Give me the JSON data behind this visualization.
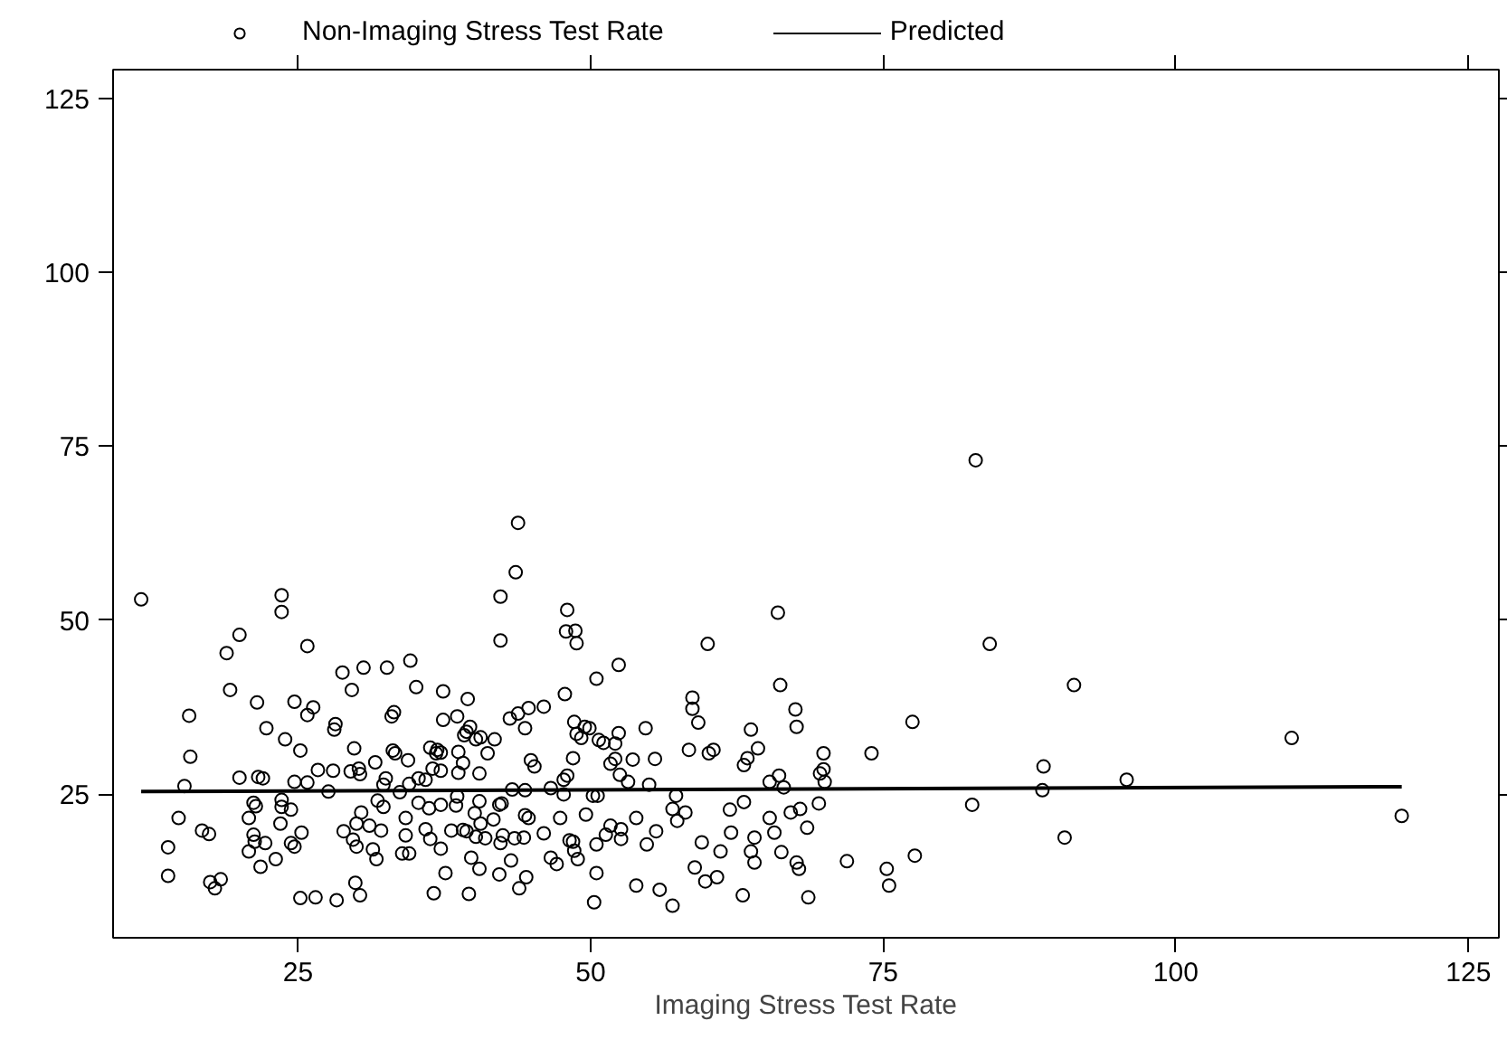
{
  "chart_data": {
    "type": "scatter",
    "xlabel": "Imaging Stress Test Rate",
    "xlim": [
      9.2,
      127.6
    ],
    "xticks": [
      25,
      50,
      75,
      100,
      125
    ],
    "ylim": [
      4.4,
      129.1
    ],
    "yticks": [
      25,
      50,
      75,
      100,
      125
    ],
    "grid": false,
    "legend": "top",
    "marker": "circle",
    "tick_labels": "both-left-bottom",
    "series": [
      {
        "name": "Non-Imaging Stress Test Rate",
        "color": "#000000",
        "x": [
          11.6,
          23.6,
          23.6,
          20.0,
          18.9,
          25.8,
          43.8,
          43.6,
          42.3,
          42.3,
          19.2,
          28.8,
          30.6,
          32.6,
          34.6,
          29.6,
          35.1,
          37.4,
          39.5,
          21.5,
          24.7,
          26.3,
          25.8,
          15.7,
          22.3,
          28.2,
          28.1,
          33.0,
          33.2,
          23.9,
          25.2,
          29.8,
          15.8,
          33.1,
          33.3,
          34.4,
          31.6,
          37.4,
          38.6,
          39.7,
          39.4,
          39.2,
          40.2,
          40.6,
          41.8,
          41.2,
          38.7,
          36.9,
          37.2,
          36.3,
          36.8,
          39.1,
          43.1,
          43.8,
          44.7,
          44.4,
          44.9,
          45.2,
          15.3,
          20.0,
          21.6,
          22.0,
          24.7,
          25.8,
          26.7,
          28.0,
          29.5,
          30.2,
          30.3,
          32.5,
          27.6,
          32.3,
          34.5,
          35.3,
          35.9,
          36.5,
          37.2,
          38.7,
          40.5,
          14.8,
          16.8,
          17.4,
          13.9,
          13.9,
          17.5,
          17.9,
          18.4,
          21.2,
          21.4,
          20.8,
          21.2,
          21.3,
          22.2,
          20.8,
          21.8,
          23.1,
          23.6,
          23.6,
          24.4,
          23.5,
          25.3,
          24.4,
          24.7,
          25.2,
          26.5,
          28.3,
          30.3,
          29.9,
          28.9,
          30.0,
          31.1,
          32.1,
          29.7,
          30.0,
          31.4,
          31.7,
          30.4,
          31.8,
          32.3,
          33.7,
          34.2,
          34.2,
          33.9,
          34.5,
          35.3,
          36.2,
          35.9,
          36.3,
          37.2,
          37.2,
          37.6,
          36.6,
          39.6,
          38.1,
          39.1,
          39.4,
          38.5,
          38.6,
          40.5,
          40.1,
          40.6,
          41.7,
          40.2,
          41.0,
          42.2,
          42.4,
          43.3,
          44.4,
          44.4,
          44.7,
          42.5,
          43.5,
          44.3,
          42.3,
          39.8,
          40.5,
          42.2,
          43.2,
          43.9,
          44.5,
          48.0,
          47.9,
          48.7,
          48.8,
          52.4,
          50.5,
          47.8,
          46.0,
          48.6,
          49.5,
          49.9,
          52.4,
          48.8,
          49.2,
          50.7,
          51.1,
          52.1,
          54.7,
          48.5,
          52.1,
          51.7,
          53.6,
          55.5,
          52.5,
          53.2,
          48.0,
          47.7,
          55.0,
          46.6,
          47.7,
          50.2,
          50.6,
          57.3,
          58.4,
          58.7,
          58.7,
          59.2,
          60.0,
          66.0,
          66.2,
          67.5,
          67.6,
          63.7,
          64.3,
          63.4,
          63.1,
          60.5,
          60.1,
          65.3,
          66.1,
          66.5,
          69.6,
          69.9,
          69.9,
          70.0,
          74.0,
          77.5,
          84.1,
          82.6,
          69.5,
          67.9,
          67.1,
          68.5,
          65.3,
          65.7,
          63.1,
          61.9,
          57.0,
          58.1,
          57.4,
          53.9,
          49.6,
          47.4,
          46.0,
          51.7,
          51.3,
          52.6,
          52.6,
          55.6,
          50.5,
          54.8,
          48.2,
          48.5,
          48.6,
          48.9,
          46.6,
          47.1,
          59.5,
          61.1,
          62.0,
          64.0,
          63.7,
          64.0,
          66.3,
          67.6,
          67.8,
          71.9,
          75.3,
          77.7,
          75.5,
          50.5,
          58.9,
          53.9,
          55.9,
          50.3,
          57.0,
          59.8,
          60.8,
          63.0,
          68.6,
          82.9,
          91.3,
          109.9,
          88.7,
          88.6,
          95.8,
          90.5,
          119.3
        ],
        "values": [
          53.0,
          53.6,
          51.2,
          47.9,
          45.3,
          46.3,
          64.0,
          56.9,
          53.4,
          47.1,
          40.0,
          42.5,
          43.2,
          43.2,
          44.2,
          40.0,
          40.4,
          39.8,
          38.7,
          38.2,
          38.3,
          37.5,
          36.4,
          36.3,
          34.5,
          35.1,
          34.3,
          36.2,
          36.8,
          32.9,
          31.3,
          31.6,
          30.4,
          31.3,
          30.9,
          29.9,
          29.6,
          35.7,
          36.2,
          34.7,
          34.0,
          33.5,
          32.9,
          33.2,
          32.9,
          30.9,
          31.1,
          31.4,
          31.0,
          31.7,
          30.9,
          29.5,
          35.9,
          36.6,
          37.4,
          34.5,
          29.9,
          29.0,
          26.2,
          27.4,
          27.5,
          27.3,
          26.8,
          26.7,
          28.5,
          28.4,
          28.3,
          28.7,
          27.9,
          27.3,
          25.4,
          26.4,
          26.5,
          27.3,
          27.1,
          28.7,
          28.4,
          28.1,
          28.0,
          21.6,
          19.8,
          19.3,
          17.4,
          13.3,
          12.4,
          11.5,
          12.8,
          23.8,
          23.3,
          21.6,
          19.2,
          18.2,
          18.0,
          16.8,
          14.6,
          15.7,
          24.2,
          23.2,
          22.8,
          20.8,
          19.5,
          18.0,
          17.5,
          10.1,
          10.2,
          9.8,
          10.5,
          12.3,
          19.7,
          20.8,
          20.5,
          19.8,
          18.5,
          17.5,
          17.1,
          15.7,
          22.4,
          24.1,
          23.2,
          25.3,
          21.6,
          19.1,
          16.5,
          16.5,
          23.8,
          23.0,
          20.0,
          18.6,
          23.5,
          17.2,
          13.7,
          10.8,
          10.7,
          19.8,
          19.9,
          19.7,
          23.4,
          24.7,
          24.0,
          22.3,
          20.8,
          21.4,
          18.9,
          18.7,
          23.5,
          23.7,
          25.7,
          25.6,
          22.0,
          21.6,
          19.1,
          18.7,
          18.8,
          18.0,
          15.9,
          14.3,
          13.5,
          15.5,
          11.5,
          13.1,
          51.5,
          48.4,
          48.5,
          46.7,
          43.6,
          41.6,
          39.4,
          37.6,
          35.4,
          34.7,
          34.5,
          33.8,
          33.7,
          33.1,
          32.8,
          32.4,
          32.3,
          34.5,
          30.2,
          30.1,
          29.4,
          30.0,
          30.1,
          27.8,
          26.8,
          27.7,
          27.1,
          26.4,
          25.9,
          25.0,
          24.8,
          24.8,
          24.8,
          31.4,
          38.9,
          37.3,
          35.3,
          46.6,
          51.1,
          40.7,
          37.2,
          34.7,
          34.3,
          31.6,
          30.2,
          29.2,
          31.4,
          30.9,
          26.8,
          27.7,
          26.0,
          28.0,
          30.9,
          28.6,
          26.8,
          30.9,
          35.4,
          46.6,
          23.5,
          23.7,
          22.9,
          22.4,
          20.2,
          21.6,
          19.5,
          23.9,
          22.8,
          22.9,
          22.4,
          21.2,
          21.6,
          22.1,
          21.6,
          19.4,
          20.5,
          19.2,
          20.0,
          18.6,
          19.7,
          17.8,
          17.8,
          18.4,
          18.2,
          16.9,
          15.7,
          15.9,
          15.0,
          18.1,
          16.8,
          19.5,
          18.8,
          16.8,
          15.2,
          16.7,
          15.2,
          14.3,
          15.4,
          14.3,
          16.2,
          11.9,
          13.7,
          14.5,
          11.9,
          11.3,
          9.5,
          9.0,
          12.5,
          13.1,
          10.5,
          10.2,
          73.0,
          40.7,
          33.1,
          29.0,
          25.6,
          27.1,
          18.8,
          21.9
        ]
      },
      {
        "name": "Predicted",
        "type": "line",
        "color": "#000000",
        "marker": "none",
        "line_style": "solid",
        "x": [
          11.6,
          119.3
        ],
        "values": [
          25.4,
          26.1
        ]
      }
    ]
  }
}
